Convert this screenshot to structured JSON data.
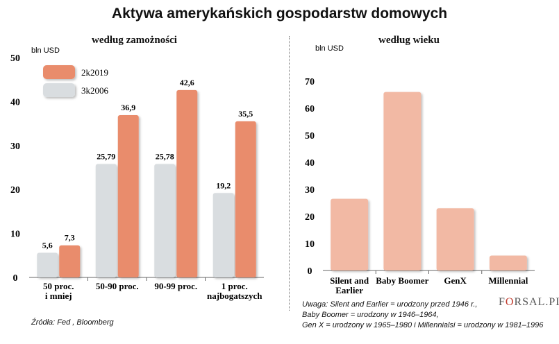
{
  "title": "Aktywa amerykańskich gospodarstw domowych",
  "source": "Źródła: Fed , Bloomberg",
  "logo": {
    "pre": "F",
    "accent": "O",
    "post": "RSAL.PL"
  },
  "notes": [
    "Uwaga: Silent and Earlier = urodzony przed 1946 r.,",
    "Baby Boomer = urodzony w 1946–1964,",
    "Gen X = urodzony w 1965–1980 i Millennialsi = urodzony w 1981–1996"
  ],
  "chart_data": [
    {
      "type": "bar",
      "title": "według zamożności",
      "ylabel": "bln USD",
      "ylim": [
        0,
        50
      ],
      "yticks": [
        0,
        10,
        20,
        30,
        40,
        50
      ],
      "grid": false,
      "legend": "top-left",
      "categories": [
        "50 proc.\ni mniej",
        "50-90 proc.",
        "90-99  proc.",
        "1 proc.\nnajbogatszych"
      ],
      "series": [
        {
          "name": "3k2006",
          "color": "#d9dde0",
          "values": [
            5.6,
            25.79,
            25.78,
            19.2
          ],
          "labels": [
            "5,6",
            "25,79",
            "25,78",
            "19,2"
          ]
        },
        {
          "name": "2k2019",
          "color": "#e98c6c",
          "values": [
            7.3,
            36.9,
            42.6,
            35.5
          ],
          "labels": [
            "7,3",
            "36,9",
            "42,6",
            "35,5"
          ]
        }
      ]
    },
    {
      "type": "bar",
      "title": "według wieku",
      "ylabel": "bln USD",
      "ylim": [
        0,
        80
      ],
      "yticks": [
        0,
        10,
        20,
        30,
        40,
        50,
        60,
        70,
        80
      ],
      "grid": false,
      "categories": [
        "Silent and\nEarlier",
        "Baby Boomer",
        "GenX",
        "Millennial"
      ],
      "series": [
        {
          "color": "#f2b9a4",
          "values": [
            26.5,
            66,
            23,
            5.5
          ]
        }
      ]
    }
  ]
}
